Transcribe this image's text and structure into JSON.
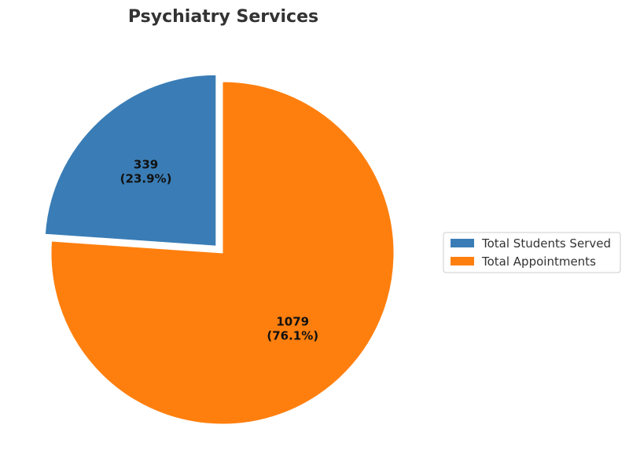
{
  "chart_data": {
    "type": "pie",
    "title": "Psychiatry Services",
    "categories": [
      "Total Students Served",
      "Total Appointments"
    ],
    "values": [
      339,
      1079
    ],
    "percent_labels": [
      "(23.9%)",
      "(76.1%)"
    ],
    "value_labels": [
      "339",
      "1079"
    ],
    "colors": [
      "#3a7db6",
      "#ff7f0e"
    ],
    "start_angle_deg": 90,
    "direction": "counterclockwise",
    "exploded": [
      true,
      false
    ],
    "legend_placement": "right"
  }
}
